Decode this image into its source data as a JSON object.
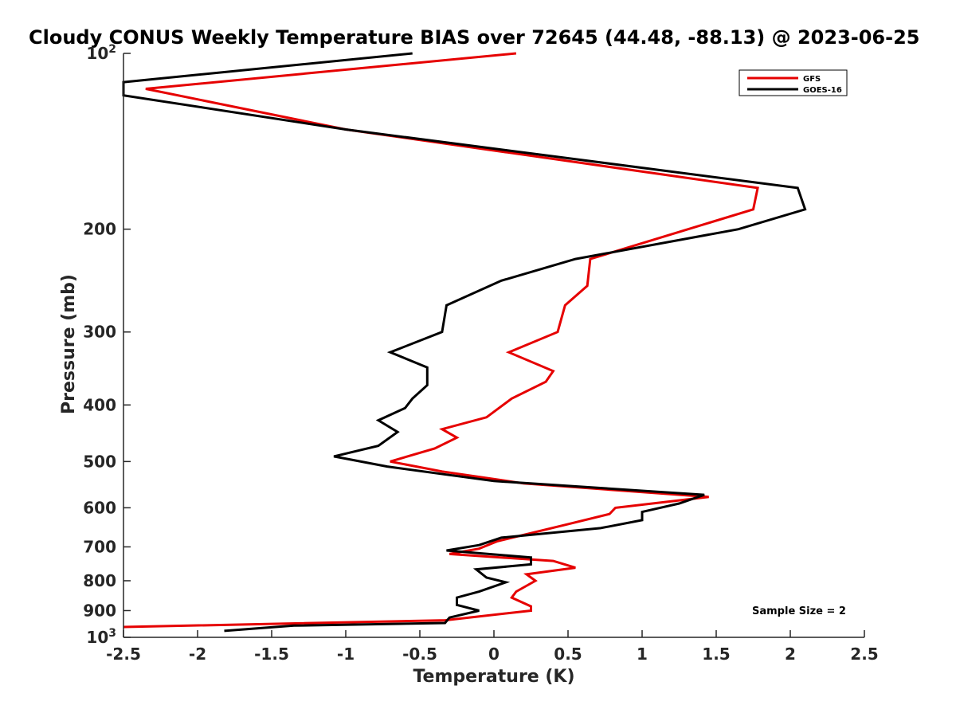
{
  "chart_data": {
    "type": "line",
    "title": "Cloudy CONUS Weekly Temperature BIAS over 72645 (44.48, -88.13) @ 2023-06-25",
    "xlabel": "Temperature (K)",
    "ylabel": "Pressure (mb)",
    "xlim": [
      -2.5,
      2.5
    ],
    "ylim": [
      100,
      1000
    ],
    "yscale": "log",
    "y_reversed": true,
    "grid": false,
    "legend_position": "top-right",
    "x_tick_labels": [
      "-2.5",
      "-2",
      "-1.5",
      "-1",
      "-0.5",
      "0",
      "0.5",
      "1",
      "1.5",
      "2",
      "2.5"
    ],
    "x_ticks": [
      -2.5,
      -2,
      -1.5,
      -1,
      -0.5,
      0,
      0.5,
      1,
      1.5,
      2,
      2.5
    ],
    "y_ticks": [
      100,
      200,
      300,
      400,
      500,
      600,
      700,
      800,
      900,
      1000
    ],
    "y_tick_labels": [
      {
        "base": "10",
        "exp": "2"
      },
      {
        "base": "200",
        "exp": ""
      },
      {
        "base": "300",
        "exp": ""
      },
      {
        "base": "400",
        "exp": ""
      },
      {
        "base": "500",
        "exp": ""
      },
      {
        "base": "600",
        "exp": ""
      },
      {
        "base": "700",
        "exp": ""
      },
      {
        "base": "800",
        "exp": ""
      },
      {
        "base": "900",
        "exp": ""
      },
      {
        "base": "10",
        "exp": "3"
      }
    ],
    "annotation": "Sample Size = 2",
    "series": [
      {
        "name": "GFS",
        "color": "#e60000",
        "points": [
          {
            "x": 0.15,
            "p": 100
          },
          {
            "x": -2.35,
            "p": 115
          },
          {
            "x": -1.0,
            "p": 135
          },
          {
            "x": 1.78,
            "p": 170
          },
          {
            "x": 1.75,
            "p": 185
          },
          {
            "x": 0.65,
            "p": 225
          },
          {
            "x": 0.63,
            "p": 250
          },
          {
            "x": 0.48,
            "p": 270
          },
          {
            "x": 0.43,
            "p": 300
          },
          {
            "x": 0.1,
            "p": 325
          },
          {
            "x": 0.4,
            "p": 350
          },
          {
            "x": 0.35,
            "p": 365
          },
          {
            "x": 0.12,
            "p": 390
          },
          {
            "x": -0.05,
            "p": 420
          },
          {
            "x": -0.35,
            "p": 440
          },
          {
            "x": -0.25,
            "p": 455
          },
          {
            "x": -0.4,
            "p": 475
          },
          {
            "x": -0.7,
            "p": 500
          },
          {
            "x": -0.35,
            "p": 520
          },
          {
            "x": 0.2,
            "p": 545
          },
          {
            "x": 1.45,
            "p": 575
          },
          {
            "x": 0.82,
            "p": 600
          },
          {
            "x": 0.78,
            "p": 615
          },
          {
            "x": 0.5,
            "p": 640
          },
          {
            "x": 0.02,
            "p": 685
          },
          {
            "x": -0.1,
            "p": 705
          },
          {
            "x": -0.3,
            "p": 720
          },
          {
            "x": 0.4,
            "p": 740
          },
          {
            "x": 0.55,
            "p": 760
          },
          {
            "x": 0.22,
            "p": 780
          },
          {
            "x": 0.28,
            "p": 800
          },
          {
            "x": 0.15,
            "p": 835
          },
          {
            "x": 0.12,
            "p": 855
          },
          {
            "x": 0.25,
            "p": 885
          },
          {
            "x": 0.25,
            "p": 900
          },
          {
            "x": -0.33,
            "p": 935
          },
          {
            "x": -2.5,
            "p": 960
          }
        ]
      },
      {
        "name": "GOES-16",
        "color": "#000000",
        "points": [
          {
            "x": -0.55,
            "p": 100
          },
          {
            "x": -2.5,
            "p": 112
          },
          {
            "x": -2.5,
            "p": 118
          },
          {
            "x": -1.0,
            "p": 135
          },
          {
            "x": 2.05,
            "p": 170
          },
          {
            "x": 2.1,
            "p": 185
          },
          {
            "x": 1.65,
            "p": 200
          },
          {
            "x": 0.55,
            "p": 225
          },
          {
            "x": 0.05,
            "p": 245
          },
          {
            "x": -0.32,
            "p": 270
          },
          {
            "x": -0.35,
            "p": 300
          },
          {
            "x": -0.7,
            "p": 325
          },
          {
            "x": -0.45,
            "p": 345
          },
          {
            "x": -0.45,
            "p": 370
          },
          {
            "x": -0.55,
            "p": 390
          },
          {
            "x": -0.6,
            "p": 405
          },
          {
            "x": -0.78,
            "p": 425
          },
          {
            "x": -0.65,
            "p": 445
          },
          {
            "x": -0.78,
            "p": 470
          },
          {
            "x": -1.08,
            "p": 490
          },
          {
            "x": -0.72,
            "p": 510
          },
          {
            "x": 0.0,
            "p": 540
          },
          {
            "x": 1.42,
            "p": 570
          },
          {
            "x": 1.25,
            "p": 590
          },
          {
            "x": 1.0,
            "p": 610
          },
          {
            "x": 1.0,
            "p": 630
          },
          {
            "x": 0.72,
            "p": 650
          },
          {
            "x": 0.05,
            "p": 675
          },
          {
            "x": -0.1,
            "p": 695
          },
          {
            "x": -0.32,
            "p": 710
          },
          {
            "x": 0.25,
            "p": 730
          },
          {
            "x": 0.25,
            "p": 750
          },
          {
            "x": -0.12,
            "p": 765
          },
          {
            "x": -0.05,
            "p": 790
          },
          {
            "x": 0.08,
            "p": 805
          },
          {
            "x": -0.1,
            "p": 835
          },
          {
            "x": -0.25,
            "p": 855
          },
          {
            "x": -0.25,
            "p": 880
          },
          {
            "x": -0.1,
            "p": 900
          },
          {
            "x": -0.3,
            "p": 925
          },
          {
            "x": -0.33,
            "p": 945
          },
          {
            "x": -1.35,
            "p": 955
          },
          {
            "x": -1.82,
            "p": 975
          }
        ]
      }
    ]
  }
}
